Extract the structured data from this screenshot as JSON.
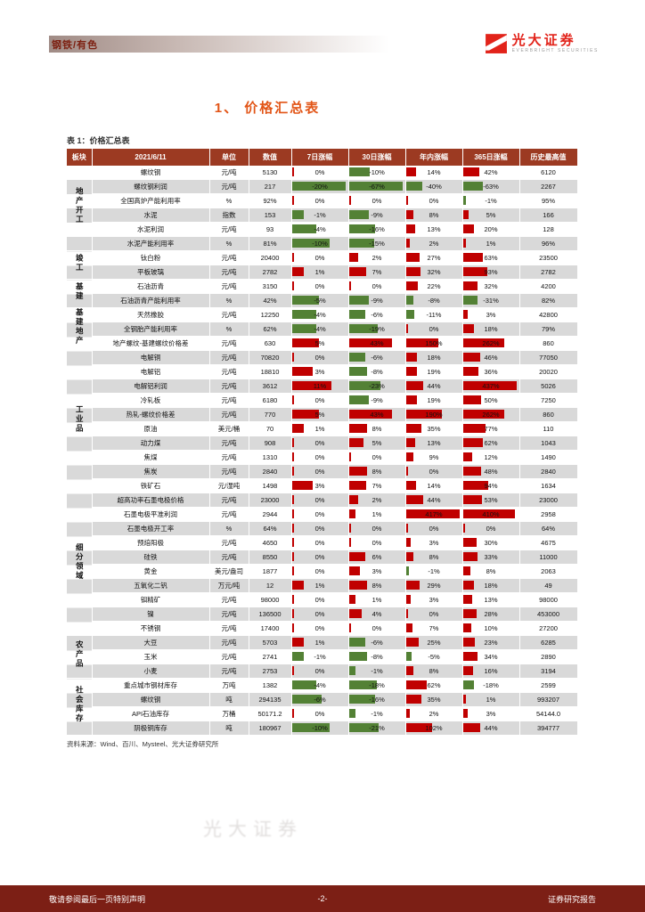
{
  "page": {
    "header": {
      "category": "钢铁/有色",
      "brand": "光大证券",
      "brand_sub": "EVERBRIGHT SECURITIES"
    },
    "title": "1、 价格汇总表",
    "table_caption": "表 1：价格汇总表",
    "source_note": "资料来源：Wind、百川、Mysteel、光大证券研究所",
    "watermark": "光大证券",
    "footer": {
      "left": "敬请参阅最后一页特别声明",
      "center": "-2-",
      "right": "证券研究报告"
    }
  },
  "colors": {
    "positive_bar": "#C00000",
    "negative_bar": "#538135",
    "table_header_bg": "#9C3A22",
    "row_stripe": "#D9D9D9",
    "title_accent": "#E25517",
    "footer_bg": "#7C1F15",
    "brand_red": "#E2231A"
  },
  "table": {
    "headers": [
      "板块",
      "2021/6/11",
      "单位",
      "数值",
      "7日涨幅",
      "30日涨幅",
      "年内涨幅",
      "365日涨幅",
      "历史最高值"
    ],
    "groups": [
      {
        "name": "地产开工",
        "rows": [
          {
            "n": "螺纹钢",
            "u": "元/吨",
            "v": "5130",
            "d7": 0,
            "d30": -10,
            "ytd": 14,
            "d365": 42,
            "h": "6120"
          },
          {
            "n": "螺纹钢利润",
            "u": "元/吨",
            "v": "217",
            "d7": -20,
            "d30": -67,
            "ytd": -40,
            "d365": -63,
            "h": "2267"
          },
          {
            "n": "全国高炉产能利用率",
            "u": "%",
            "v": "92%",
            "d7": 0,
            "d30": 0,
            "ytd": 0,
            "d365": -1,
            "h": "95%"
          },
          {
            "n": "水泥",
            "u": "指数",
            "v": "153",
            "d7": -1,
            "d30": -9,
            "ytd": 8,
            "d365": 5,
            "h": "166"
          },
          {
            "n": "水泥利润",
            "u": "元/吨",
            "v": "93",
            "d7": -4,
            "d30": -16,
            "ytd": 13,
            "d365": 20,
            "h": "128"
          },
          {
            "n": "水泥产能利用率",
            "u": "%",
            "v": "81%",
            "d7": -10,
            "d30": -15,
            "ytd": 2,
            "d365": 1,
            "h": "96%"
          }
        ]
      },
      {
        "name": "竣工",
        "rows": [
          {
            "n": "钛白粉",
            "u": "元/吨",
            "v": "20400",
            "d7": 0,
            "d30": 2,
            "ytd": 27,
            "d365": 63,
            "h": "23500"
          },
          {
            "n": "平板玻璃",
            "u": "元/吨",
            "v": "2782",
            "d7": 1,
            "d30": 7,
            "ytd": 32,
            "d365": 93,
            "h": "2782"
          }
        ]
      },
      {
        "name": "基建",
        "rows": [
          {
            "n": "石油沥青",
            "u": "元/吨",
            "v": "3150",
            "d7": 0,
            "d30": 0,
            "ytd": 22,
            "d365": 32,
            "h": "4200"
          },
          {
            "n": "石油沥青产能利用率",
            "u": "%",
            "v": "42%",
            "d7": -5,
            "d30": -9,
            "ytd": -8,
            "d365": -31,
            "h": "82%"
          }
        ]
      },
      {
        "name": "基建地产",
        "rows": [
          {
            "n": "天然橡胶",
            "u": "元/吨",
            "v": "12250",
            "d7": -4,
            "d30": -6,
            "ytd": -11,
            "d365": 3,
            "h": "42800"
          },
          {
            "n": "全钢胎产能利用率",
            "u": "%",
            "v": "62%",
            "d7": -4,
            "d30": -19,
            "ytd": 0,
            "d365": 18,
            "h": "79%"
          },
          {
            "n": "地产螺纹-基建螺纹价格差",
            "u": "元/吨",
            "v": "630",
            "d7": 5,
            "d30": 43,
            "ytd": 150,
            "d365": 262,
            "h": "860"
          }
        ]
      },
      {
        "name": "工业品",
        "rows": [
          {
            "n": "电解铜",
            "u": "元/吨",
            "v": "70820",
            "d7": 0,
            "d30": -6,
            "ytd": 18,
            "d365": 46,
            "h": "77050"
          },
          {
            "n": "电解铝",
            "u": "元/吨",
            "v": "18810",
            "d7": 3,
            "d30": -8,
            "ytd": 19,
            "d365": 36,
            "h": "20020"
          },
          {
            "n": "电解铝利润",
            "u": "元/吨",
            "v": "3612",
            "d7": 11,
            "d30": -23,
            "ytd": 44,
            "d365": 437,
            "h": "5026"
          },
          {
            "n": "冷轧板",
            "u": "元/吨",
            "v": "6180",
            "d7": 0,
            "d30": -9,
            "ytd": 19,
            "d365": 50,
            "h": "7250"
          },
          {
            "n": "热轧-螺纹价格差",
            "u": "元/吨",
            "v": "770",
            "d7": 5,
            "d30": 43,
            "ytd": 190,
            "d365": 262,
            "h": "860"
          },
          {
            "n": "原油",
            "u": "美元/桶",
            "v": "70",
            "d7": 1,
            "d30": 8,
            "ytd": 35,
            "d365": 77,
            "h": "110"
          },
          {
            "n": "动力煤",
            "u": "元/吨",
            "v": "908",
            "d7": 0,
            "d30": 5,
            "ytd": 13,
            "d365": 62,
            "h": "1043"
          },
          {
            "n": "焦煤",
            "u": "元/吨",
            "v": "1310",
            "d7": 0,
            "d30": 0,
            "ytd": 9,
            "d365": 12,
            "h": "1490"
          },
          {
            "n": "焦炭",
            "u": "元/吨",
            "v": "2840",
            "d7": 0,
            "d30": 8,
            "ytd": 0,
            "d365": 48,
            "h": "2840"
          },
          {
            "n": "铁矿石",
            "u": "元/湿吨",
            "v": "1498",
            "d7": 3,
            "d30": 7,
            "ytd": 14,
            "d365": 94,
            "h": "1634"
          }
        ]
      },
      {
        "name": "细分领域",
        "rows": [
          {
            "n": "超高功率石墨电极价格",
            "u": "元/吨",
            "v": "23000",
            "d7": 0,
            "d30": 2,
            "ytd": 44,
            "d365": 53,
            "h": "23000"
          },
          {
            "n": "石墨电极平准利润",
            "u": "元/吨",
            "v": "2944",
            "d7": 0,
            "d30": 1,
            "ytd": 417,
            "d365": 410,
            "h": "2958"
          },
          {
            "n": "石墨电极开工率",
            "u": "%",
            "v": "64%",
            "d7": 0,
            "d30": 0,
            "ytd": 0,
            "d365": 0,
            "h": "64%"
          },
          {
            "n": "预焙阳极",
            "u": "元/吨",
            "v": "4650",
            "d7": 0,
            "d30": 0,
            "ytd": 3,
            "d365": 30,
            "h": "4675"
          },
          {
            "n": "硅铁",
            "u": "元/吨",
            "v": "8550",
            "d7": 0,
            "d30": 6,
            "ytd": 8,
            "d365": 33,
            "h": "11000"
          },
          {
            "n": "黄金",
            "u": "美元/盎司",
            "v": "1877",
            "d7": 0,
            "d30": 3,
            "ytd": -1,
            "d365": 8,
            "h": "2063"
          },
          {
            "n": "五氧化二钒",
            "u": "万元/吨",
            "v": "12",
            "d7": 1,
            "d30": 8,
            "ytd": 29,
            "d365": 18,
            "h": "49"
          },
          {
            "n": "钼精矿",
            "u": "元/吨",
            "v": "98000",
            "d7": 0,
            "d30": 1,
            "ytd": 3,
            "d365": 13,
            "h": "98000"
          },
          {
            "n": "镍",
            "u": "元/吨",
            "v": "136500",
            "d7": 0,
            "d30": 4,
            "ytd": 0,
            "d365": 28,
            "h": "453000"
          },
          {
            "n": "不锈钢",
            "u": "元/吨",
            "v": "17400",
            "d7": 0,
            "d30": 0,
            "ytd": 7,
            "d365": 10,
            "h": "27200"
          }
        ]
      },
      {
        "name": "农产品",
        "rows": [
          {
            "n": "大豆",
            "u": "元/吨",
            "v": "5703",
            "d7": 1,
            "d30": -6,
            "ytd": 25,
            "d365": 23,
            "h": "6285"
          },
          {
            "n": "玉米",
            "u": "元/吨",
            "v": "2741",
            "d7": -1,
            "d30": -8,
            "ytd": -5,
            "d365": 34,
            "h": "2890"
          },
          {
            "n": "小麦",
            "u": "元/吨",
            "v": "2753",
            "d7": 0,
            "d30": -1,
            "ytd": 8,
            "d365": 16,
            "h": "3194"
          }
        ]
      },
      {
        "name": "社会库存",
        "rows": [
          {
            "n": "重点城市钢材库存",
            "u": "万吨",
            "v": "1382",
            "d7": -4,
            "d30": -18,
            "ytd": 62,
            "d365": -18,
            "h": "2599"
          },
          {
            "n": "螺纹钢",
            "u": "吨",
            "v": "294135",
            "d7": -6,
            "d30": -16,
            "ytd": 35,
            "d365": 1,
            "h": "993207"
          },
          {
            "n": "API石油库存",
            "u": "万桶",
            "v": "50171.2",
            "d7": 0,
            "d30": -1,
            "ytd": 2,
            "d365": 3,
            "h": "54144.0"
          },
          {
            "n": "阴极铜库存",
            "u": "吨",
            "v": "180967",
            "d7": -10,
            "d30": -21,
            "ytd": 102,
            "d365": 44,
            "h": "394777"
          }
        ]
      }
    ]
  }
}
